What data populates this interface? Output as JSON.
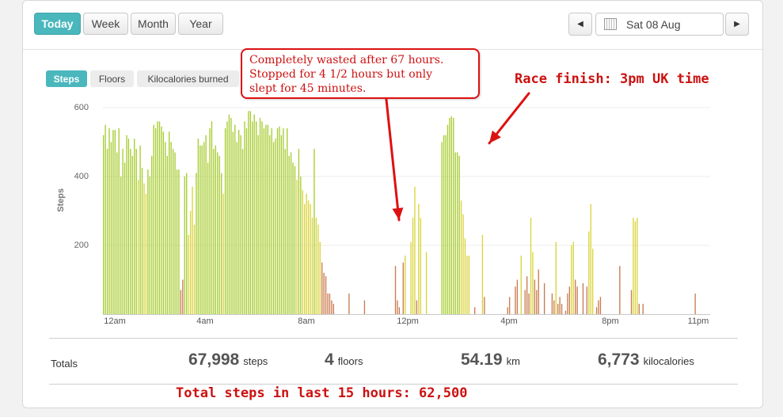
{
  "period_buttons": [
    {
      "label": "Today",
      "active": true
    },
    {
      "label": "Week",
      "active": false
    },
    {
      "label": "Month",
      "active": false
    },
    {
      "label": "Year",
      "active": false
    }
  ],
  "date_nav": {
    "prev": "◀",
    "date": "Sat 08 Aug",
    "next": "▶"
  },
  "metric_tabs": [
    {
      "label": "Steps",
      "active": true
    },
    {
      "label": "Floors",
      "active": false
    },
    {
      "label": "Kilocalories burned",
      "active": false
    }
  ],
  "totals": {
    "label": "Totals",
    "steps": {
      "value": "67,998",
      "unit": "steps"
    },
    "floors": {
      "value": "4",
      "unit": "floors"
    },
    "distance": {
      "value": "54.19",
      "unit": "km"
    },
    "kcal": {
      "value": "6,773",
      "unit": "kilocalories"
    }
  },
  "annotations": {
    "callout": [
      "Completely wasted after 67 hours.",
      "Stopped for 4 1/2 hours but only",
      "slept for 45 minutes."
    ],
    "race_finish": "Race finish: 3pm UK time",
    "total_last_15": "Total steps in last 15 hours: 62,500"
  },
  "colors": {
    "accent": "#4ab7bd",
    "high": "#a6cc2e",
    "mid": "#d9d43a",
    "low": "#c97a4e",
    "annotation": "#dd1111"
  },
  "chart_data": {
    "type": "bar",
    "ylabel": "Steps",
    "ylim": [
      0,
      600
    ],
    "yticks": [
      200,
      400,
      600
    ],
    "xticks": [
      "12am",
      "4am",
      "8am",
      "12pm",
      "4pm",
      "8pm",
      "11pm"
    ],
    "interval_minutes": 5,
    "values": [
      520,
      550,
      480,
      540,
      500,
      535,
      535,
      470,
      540,
      400,
      480,
      440,
      520,
      510,
      480,
      460,
      510,
      480,
      390,
      490,
      425,
      380,
      350,
      420,
      400,
      460,
      550,
      540,
      560,
      560,
      545,
      530,
      500,
      460,
      530,
      500,
      480,
      470,
      420,
      420,
      70,
      100,
      400,
      410,
      230,
      300,
      370,
      260,
      410,
      510,
      490,
      490,
      500,
      520,
      440,
      540,
      560,
      480,
      490,
      470,
      460,
      410,
      350,
      540,
      560,
      580,
      570,
      530,
      550,
      500,
      535,
      520,
      480,
      560,
      540,
      590,
      590,
      560,
      580,
      560,
      520,
      570,
      560,
      540,
      550,
      550,
      520,
      540,
      500,
      510,
      540,
      545,
      520,
      540,
      480,
      540,
      460,
      470,
      440,
      430,
      390,
      480,
      400,
      360,
      320,
      350,
      330,
      320,
      280,
      480,
      280,
      260,
      210,
      150,
      120,
      110,
      60,
      60,
      40,
      30,
      0,
      0,
      0,
      0,
      0,
      0,
      0,
      60,
      0,
      0,
      0,
      0,
      0,
      0,
      0,
      40,
      0,
      0,
      0,
      0,
      0,
      0,
      0,
      0,
      0,
      0,
      0,
      0,
      0,
      0,
      0,
      140,
      40,
      20,
      0,
      150,
      170,
      0,
      0,
      210,
      280,
      370,
      40,
      320,
      280,
      0,
      0,
      180,
      0,
      0,
      0,
      0,
      0,
      0,
      0,
      500,
      520,
      520,
      550,
      570,
      575,
      570,
      470,
      470,
      460,
      330,
      290,
      220,
      170,
      170,
      0,
      0,
      20,
      0,
      0,
      0,
      230,
      50,
      0,
      0,
      0,
      0,
      0,
      0,
      0,
      0,
      0,
      0,
      0,
      20,
      50,
      0,
      0,
      80,
      100,
      0,
      170,
      0,
      70,
      110,
      60,
      280,
      180,
      100,
      70,
      130,
      0,
      0,
      90,
      0,
      0,
      0,
      60,
      40,
      210,
      30,
      50,
      30,
      0,
      10,
      60,
      80,
      200,
      210,
      100,
      80,
      0,
      0,
      90,
      0,
      80,
      240,
      320,
      190,
      0,
      20,
      40,
      50,
      0,
      0,
      0,
      0,
      0,
      0,
      0,
      0,
      0,
      140,
      0,
      0,
      0,
      0,
      0,
      70,
      280,
      270,
      280,
      30,
      0,
      30,
      0,
      0,
      0,
      0,
      0,
      0,
      0,
      0,
      0,
      0,
      0,
      0,
      0,
      0,
      0,
      0,
      0,
      0,
      0,
      0,
      0,
      0,
      0,
      0,
      0,
      0,
      60,
      0,
      0,
      0,
      0,
      0,
      0,
      0
    ]
  }
}
